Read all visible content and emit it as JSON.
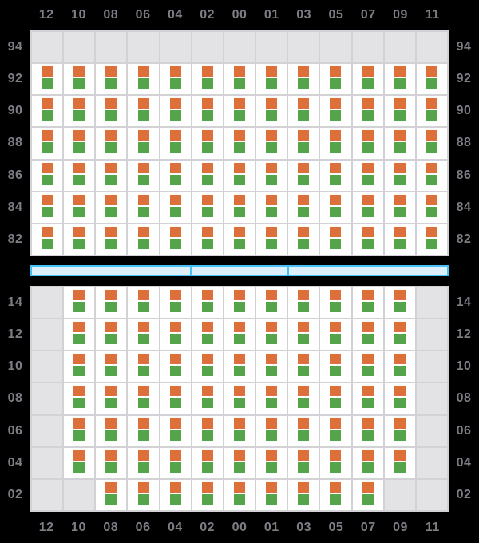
{
  "colors": {
    "background": "#000000",
    "label": "#7d7d86",
    "grid_line": "#d2d2d6",
    "cell_empty": "#e3e3e6",
    "cell_filled": "#ffffff",
    "square_orange": "#dd6f3a",
    "square_green": "#54a44a",
    "hatch_fill": "#dceffb",
    "hatch_border": "#45c2f3"
  },
  "columns": [
    "12",
    "10",
    "08",
    "06",
    "04",
    "02",
    "00",
    "01",
    "03",
    "05",
    "07",
    "09",
    "11"
  ],
  "deck_section": {
    "tiers": [
      "94",
      "92",
      "90",
      "88",
      "86",
      "84",
      "82"
    ],
    "occupancy": [
      [
        0,
        0,
        0,
        0,
        0,
        0,
        0,
        0,
        0,
        0,
        0,
        0,
        0
      ],
      [
        1,
        1,
        1,
        1,
        1,
        1,
        1,
        1,
        1,
        1,
        1,
        1,
        1
      ],
      [
        1,
        1,
        1,
        1,
        1,
        1,
        1,
        1,
        1,
        1,
        1,
        1,
        1
      ],
      [
        1,
        1,
        1,
        1,
        1,
        1,
        1,
        1,
        1,
        1,
        1,
        1,
        1
      ],
      [
        1,
        1,
        1,
        1,
        1,
        1,
        1,
        1,
        1,
        1,
        1,
        1,
        1
      ],
      [
        1,
        1,
        1,
        1,
        1,
        1,
        1,
        1,
        1,
        1,
        1,
        1,
        1
      ],
      [
        1,
        1,
        1,
        1,
        1,
        1,
        1,
        1,
        1,
        1,
        1,
        1,
        1
      ]
    ]
  },
  "hatch_bar": {
    "segments": [
      5,
      3,
      5
    ]
  },
  "hold_section": {
    "tiers": [
      "14",
      "12",
      "10",
      "08",
      "06",
      "04",
      "02"
    ],
    "occupancy": [
      [
        0,
        1,
        1,
        1,
        1,
        1,
        1,
        1,
        1,
        1,
        1,
        1,
        0
      ],
      [
        0,
        1,
        1,
        1,
        1,
        1,
        1,
        1,
        1,
        1,
        1,
        1,
        0
      ],
      [
        0,
        1,
        1,
        1,
        1,
        1,
        1,
        1,
        1,
        1,
        1,
        1,
        0
      ],
      [
        0,
        1,
        1,
        1,
        1,
        1,
        1,
        1,
        1,
        1,
        1,
        1,
        0
      ],
      [
        0,
        1,
        1,
        1,
        1,
        1,
        1,
        1,
        1,
        1,
        1,
        1,
        0
      ],
      [
        0,
        1,
        1,
        1,
        1,
        1,
        1,
        1,
        1,
        1,
        1,
        1,
        0
      ],
      [
        0,
        0,
        1,
        1,
        1,
        1,
        1,
        1,
        1,
        1,
        1,
        0,
        0
      ]
    ]
  },
  "slot_markers": [
    "orange",
    "green"
  ]
}
